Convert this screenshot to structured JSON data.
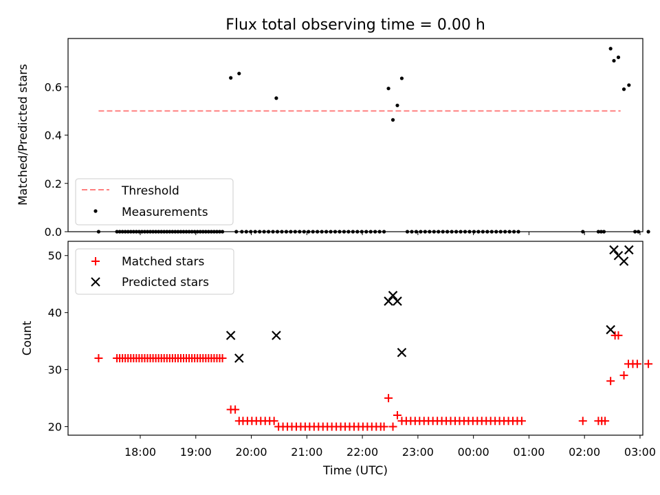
{
  "chart_data": [
    {
      "type": "scatter",
      "title": "Flux total observing time = 0.00 h",
      "xlabel": "",
      "ylabel": "Matched/Predicted stars",
      "xlim": [
        -0.55,
        9.8
      ],
      "ylim": [
        0,
        0.8
      ],
      "yticks": [
        0.0,
        0.2,
        0.4,
        0.6
      ],
      "ytick_labels": [
        "0.0",
        "0.2",
        "0.4",
        "0.6"
      ],
      "x_units": "hours since 17:00 UTC",
      "legend_position": "lower-left",
      "series": [
        {
          "name": "Threshold",
          "style": "dashed-line",
          "color": "#ff7f7f",
          "x": [
            0.0,
            9.4
          ],
          "y": [
            0.5,
            0.5
          ]
        },
        {
          "name": "Measurements",
          "style": "dot",
          "color": "#000000",
          "points": [
            [
              0.0,
              0.0
            ],
            [
              0.33,
              0.0
            ],
            [
              0.38,
              0.0
            ],
            [
              0.43,
              0.0
            ],
            [
              0.48,
              0.0
            ],
            [
              0.53,
              0.0
            ],
            [
              0.58,
              0.0
            ],
            [
              0.63,
              0.0
            ],
            [
              0.68,
              0.0
            ],
            [
              0.73,
              0.0
            ],
            [
              0.78,
              0.0
            ],
            [
              0.83,
              0.0
            ],
            [
              0.88,
              0.0
            ],
            [
              0.93,
              0.0
            ],
            [
              0.98,
              0.0
            ],
            [
              1.03,
              0.0
            ],
            [
              1.08,
              0.0
            ],
            [
              1.13,
              0.0
            ],
            [
              1.18,
              0.0
            ],
            [
              1.23,
              0.0
            ],
            [
              1.28,
              0.0
            ],
            [
              1.33,
              0.0
            ],
            [
              1.38,
              0.0
            ],
            [
              1.43,
              0.0
            ],
            [
              1.48,
              0.0
            ],
            [
              1.53,
              0.0
            ],
            [
              1.58,
              0.0
            ],
            [
              1.63,
              0.0
            ],
            [
              1.68,
              0.0
            ],
            [
              1.73,
              0.0
            ],
            [
              1.78,
              0.0
            ],
            [
              1.83,
              0.0
            ],
            [
              1.88,
              0.0
            ],
            [
              1.93,
              0.0
            ],
            [
              1.98,
              0.0
            ],
            [
              2.03,
              0.0
            ],
            [
              2.08,
              0.0
            ],
            [
              2.13,
              0.0
            ],
            [
              2.18,
              0.0
            ],
            [
              2.23,
              0.0
            ],
            [
              2.38,
              0.637
            ],
            [
              2.53,
              0.655
            ],
            [
              2.48,
              0.0
            ],
            [
              2.58,
              0.0
            ],
            [
              2.66,
              0.0
            ],
            [
              2.74,
              0.0
            ],
            [
              2.82,
              0.0
            ],
            [
              2.9,
              0.0
            ],
            [
              2.98,
              0.0
            ],
            [
              3.06,
              0.0
            ],
            [
              3.14,
              0.0
            ],
            [
              3.22,
              0.0
            ],
            [
              3.2,
              0.553
            ],
            [
              3.3,
              0.0
            ],
            [
              3.38,
              0.0
            ],
            [
              3.46,
              0.0
            ],
            [
              3.54,
              0.0
            ],
            [
              3.62,
              0.0
            ],
            [
              3.7,
              0.0
            ],
            [
              3.78,
              0.0
            ],
            [
              3.86,
              0.0
            ],
            [
              3.94,
              0.0
            ],
            [
              4.02,
              0.0
            ],
            [
              4.1,
              0.0
            ],
            [
              4.18,
              0.0
            ],
            [
              4.26,
              0.0
            ],
            [
              4.34,
              0.0
            ],
            [
              4.42,
              0.0
            ],
            [
              4.5,
              0.0
            ],
            [
              4.58,
              0.0
            ],
            [
              4.66,
              0.0
            ],
            [
              4.74,
              0.0
            ],
            [
              4.82,
              0.0
            ],
            [
              4.9,
              0.0
            ],
            [
              4.98,
              0.0
            ],
            [
              5.06,
              0.0
            ],
            [
              5.14,
              0.0
            ],
            [
              5.22,
              0.593
            ],
            [
              5.3,
              0.463
            ],
            [
              5.38,
              0.523
            ],
            [
              5.46,
              0.635
            ],
            [
              5.56,
              0.0
            ],
            [
              5.64,
              0.0
            ],
            [
              5.72,
              0.0
            ],
            [
              5.8,
              0.0
            ],
            [
              5.88,
              0.0
            ],
            [
              5.96,
              0.0
            ],
            [
              6.04,
              0.0
            ],
            [
              6.12,
              0.0
            ],
            [
              6.2,
              0.0
            ],
            [
              6.28,
              0.0
            ],
            [
              6.36,
              0.0
            ],
            [
              6.44,
              0.0
            ],
            [
              6.52,
              0.0
            ],
            [
              6.6,
              0.0
            ],
            [
              6.68,
              0.0
            ],
            [
              6.76,
              0.0
            ],
            [
              6.84,
              0.0
            ],
            [
              6.92,
              0.0
            ],
            [
              7.0,
              0.0
            ],
            [
              7.08,
              0.0
            ],
            [
              7.16,
              0.0
            ],
            [
              7.24,
              0.0
            ],
            [
              7.32,
              0.0
            ],
            [
              7.4,
              0.0
            ],
            [
              7.48,
              0.0
            ],
            [
              7.56,
              0.0
            ],
            [
              8.72,
              0.0
            ],
            [
              9.0,
              0.0
            ],
            [
              9.05,
              0.0
            ],
            [
              9.1,
              0.0
            ],
            [
              9.22,
              0.758
            ],
            [
              9.28,
              0.708
            ],
            [
              9.36,
              0.722
            ],
            [
              9.46,
              0.59
            ],
            [
              9.55,
              0.607
            ],
            [
              9.66,
              0.0
            ],
            [
              9.72,
              0.0
            ],
            [
              9.9,
              0.0
            ]
          ]
        }
      ]
    },
    {
      "type": "scatter",
      "title": "",
      "xlabel": "Time (UTC)",
      "ylabel": "Count",
      "xlim": [
        -0.55,
        9.8
      ],
      "ylim": [
        18.5,
        52.5
      ],
      "yticks": [
        20,
        30,
        40,
        50
      ],
      "ytick_labels": [
        "20",
        "30",
        "40",
        "50"
      ],
      "xticks": [
        0.75,
        1.75,
        2.75,
        3.75,
        4.75,
        5.75,
        6.75,
        7.75,
        8.75,
        9.75
      ],
      "xtick_labels": [
        "18:00",
        "19:00",
        "20:00",
        "21:00",
        "22:00",
        "23:00",
        "00:00",
        "01:00",
        "02:00",
        "03:00"
      ],
      "x_units": "hours since 17:00 UTC",
      "legend_position": "top-left",
      "series": [
        {
          "name": "Matched stars",
          "marker": "plus",
          "color": "#ff0000",
          "points": [
            [
              0.0,
              32
            ],
            [
              0.33,
              32
            ],
            [
              0.38,
              32
            ],
            [
              0.43,
              32
            ],
            [
              0.48,
              32
            ],
            [
              0.53,
              32
            ],
            [
              0.58,
              32
            ],
            [
              0.63,
              32
            ],
            [
              0.68,
              32
            ],
            [
              0.73,
              32
            ],
            [
              0.78,
              32
            ],
            [
              0.83,
              32
            ],
            [
              0.88,
              32
            ],
            [
              0.93,
              32
            ],
            [
              0.98,
              32
            ],
            [
              1.03,
              32
            ],
            [
              1.08,
              32
            ],
            [
              1.13,
              32
            ],
            [
              1.18,
              32
            ],
            [
              1.23,
              32
            ],
            [
              1.28,
              32
            ],
            [
              1.33,
              32
            ],
            [
              1.38,
              32
            ],
            [
              1.43,
              32
            ],
            [
              1.48,
              32
            ],
            [
              1.53,
              32
            ],
            [
              1.58,
              32
            ],
            [
              1.63,
              32
            ],
            [
              1.68,
              32
            ],
            [
              1.73,
              32
            ],
            [
              1.78,
              32
            ],
            [
              1.83,
              32
            ],
            [
              1.88,
              32
            ],
            [
              1.93,
              32
            ],
            [
              1.98,
              32
            ],
            [
              2.03,
              32
            ],
            [
              2.08,
              32
            ],
            [
              2.13,
              32
            ],
            [
              2.18,
              32
            ],
            [
              2.23,
              32
            ],
            [
              2.38,
              23
            ],
            [
              2.46,
              23
            ],
            [
              2.53,
              21
            ],
            [
              2.6,
              21
            ],
            [
              2.68,
              21
            ],
            [
              2.76,
              21
            ],
            [
              2.84,
              21
            ],
            [
              2.92,
              21
            ],
            [
              3.0,
              21
            ],
            [
              3.08,
              21
            ],
            [
              3.16,
              21
            ],
            [
              3.24,
              20
            ],
            [
              3.32,
              20
            ],
            [
              3.4,
              20
            ],
            [
              3.48,
              20
            ],
            [
              3.56,
              20
            ],
            [
              3.64,
              20
            ],
            [
              3.72,
              20
            ],
            [
              3.8,
              20
            ],
            [
              3.88,
              20
            ],
            [
              3.96,
              20
            ],
            [
              4.04,
              20
            ],
            [
              4.12,
              20
            ],
            [
              4.2,
              20
            ],
            [
              4.28,
              20
            ],
            [
              4.36,
              20
            ],
            [
              4.44,
              20
            ],
            [
              4.52,
              20
            ],
            [
              4.6,
              20
            ],
            [
              4.68,
              20
            ],
            [
              4.76,
              20
            ],
            [
              4.84,
              20
            ],
            [
              4.92,
              20
            ],
            [
              5.0,
              20
            ],
            [
              5.08,
              20
            ],
            [
              5.14,
              20
            ],
            [
              5.22,
              25
            ],
            [
              5.3,
              20
            ],
            [
              5.38,
              22
            ],
            [
              5.46,
              21
            ],
            [
              5.54,
              21
            ],
            [
              5.62,
              21
            ],
            [
              5.7,
              21
            ],
            [
              5.78,
              21
            ],
            [
              5.86,
              21
            ],
            [
              5.94,
              21
            ],
            [
              6.02,
              21
            ],
            [
              6.1,
              21
            ],
            [
              6.18,
              21
            ],
            [
              6.26,
              21
            ],
            [
              6.34,
              21
            ],
            [
              6.42,
              21
            ],
            [
              6.5,
              21
            ],
            [
              6.58,
              21
            ],
            [
              6.66,
              21
            ],
            [
              6.74,
              21
            ],
            [
              6.82,
              21
            ],
            [
              6.9,
              21
            ],
            [
              6.98,
              21
            ],
            [
              7.06,
              21
            ],
            [
              7.14,
              21
            ],
            [
              7.22,
              21
            ],
            [
              7.3,
              21
            ],
            [
              7.38,
              21
            ],
            [
              7.46,
              21
            ],
            [
              7.54,
              21
            ],
            [
              7.62,
              21
            ],
            [
              8.72,
              21
            ],
            [
              9.0,
              21
            ],
            [
              9.06,
              21
            ],
            [
              9.12,
              21
            ],
            [
              9.22,
              28
            ],
            [
              9.3,
              36
            ],
            [
              9.36,
              36
            ],
            [
              9.46,
              29
            ],
            [
              9.54,
              31
            ],
            [
              9.62,
              31
            ],
            [
              9.7,
              31
            ],
            [
              9.9,
              31
            ]
          ]
        },
        {
          "name": "Predicted stars",
          "marker": "x",
          "color": "#000000",
          "points": [
            [
              2.38,
              36
            ],
            [
              2.53,
              32
            ],
            [
              3.2,
              36
            ],
            [
              5.22,
              42
            ],
            [
              5.3,
              43
            ],
            [
              5.38,
              42
            ],
            [
              5.46,
              33
            ],
            [
              9.22,
              37
            ],
            [
              9.28,
              51
            ],
            [
              9.36,
              50
            ],
            [
              9.46,
              49
            ],
            [
              9.55,
              51
            ]
          ]
        }
      ]
    }
  ]
}
